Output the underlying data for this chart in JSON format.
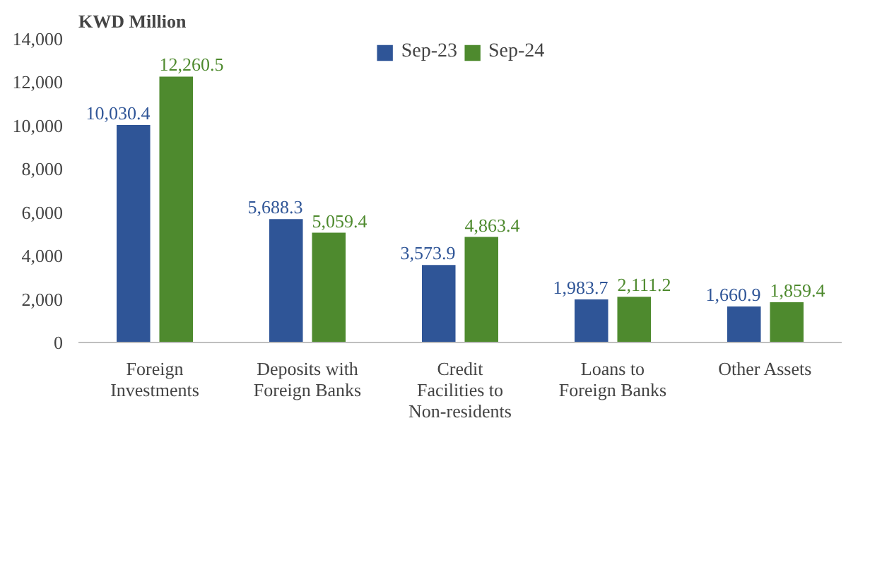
{
  "chart_data": {
    "type": "bar",
    "ylabel": "KWD Million",
    "categories": [
      "Foreign Investments",
      "Deposits with Foreign Banks",
      "Credit Facilities to Non-residents",
      "Loans to Foreign Banks",
      "Other Assets"
    ],
    "series": [
      {
        "name": "Sep-23",
        "color": "#2f5597",
        "values": [
          10030.4,
          5688.3,
          3573.9,
          1983.7,
          1660.9
        ],
        "value_labels": [
          "10,030.4",
          "5,688.3",
          "3,573.9",
          "1,983.7",
          "1,660.9"
        ]
      },
      {
        "name": "Sep-24",
        "color": "#4e8a2e",
        "values": [
          12260.5,
          5059.4,
          4863.4,
          2111.2,
          1859.4
        ],
        "value_labels": [
          "12,260.5",
          "5,059.4",
          "4,863.4",
          "2,111.2",
          "1,859.4"
        ]
      }
    ],
    "ylim": [
      0,
      14000
    ],
    "yticks": [
      {
        "value": 0,
        "label": "0"
      },
      {
        "value": 2000,
        "label": "2,000"
      },
      {
        "value": 4000,
        "label": "4,000"
      },
      {
        "value": 6000,
        "label": "6,000"
      },
      {
        "value": 8000,
        "label": "8,000"
      },
      {
        "value": 10000,
        "label": "10,000"
      },
      {
        "value": 12000,
        "label": "12,000"
      },
      {
        "value": 14000,
        "label": "14,000"
      }
    ],
    "legend": "top"
  }
}
